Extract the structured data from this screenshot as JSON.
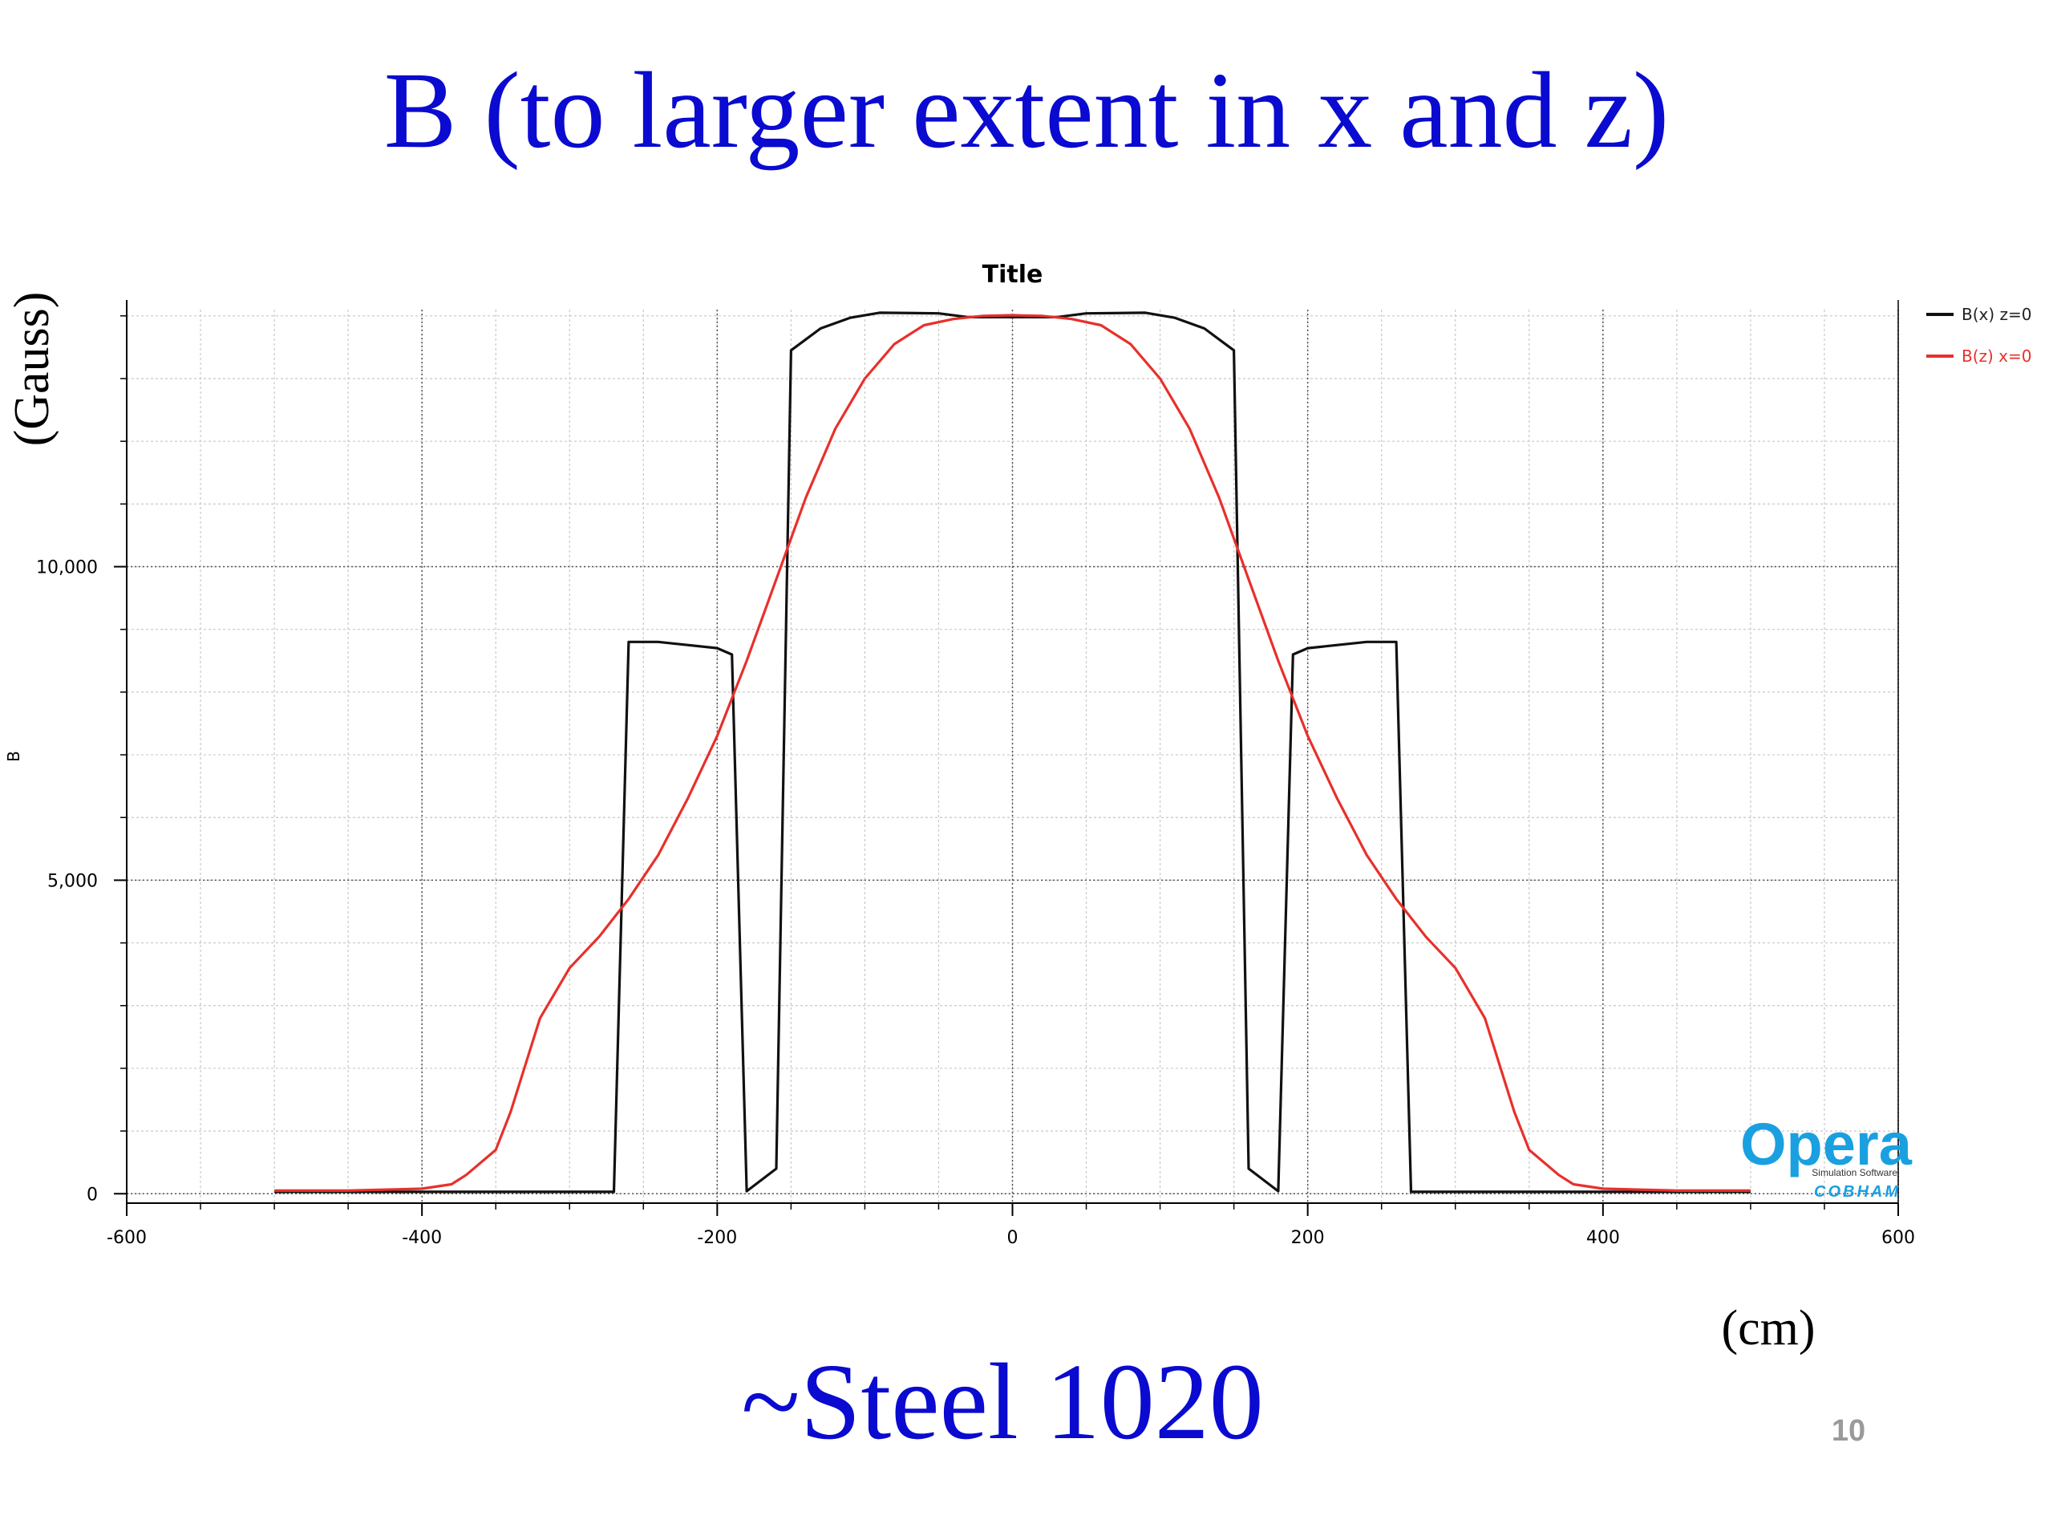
{
  "slide": {
    "title": "B (to larger extent in x and z)",
    "subtitle": "~Steel 1020",
    "y_unit": "(Gauss)",
    "x_unit": "(cm)",
    "page_number": "10"
  },
  "logo": {
    "name": "Opera",
    "tagline": "Simulation Software",
    "brand": "COBHAM"
  },
  "colors": {
    "title": "#0a0ad0",
    "series_bx": "#111111",
    "series_bz": "#e8302b",
    "logo": "#1aa0e0"
  },
  "chart_data": {
    "type": "line",
    "title": "Title",
    "xlabel": "",
    "ylabel": "B",
    "xlim": [
      -600,
      600
    ],
    "ylim": [
      -150,
      14100
    ],
    "x_ticks": [
      -600,
      -400,
      -200,
      0,
      200,
      400,
      600
    ],
    "x_tick_labels": [
      "-600",
      "-400",
      "-200",
      "0",
      "200",
      "400",
      "600"
    ],
    "y_ticks": [
      0,
      5000,
      10000
    ],
    "y_tick_labels": [
      "0",
      "5,000",
      "10,000"
    ],
    "grid": true,
    "legend": "top-right",
    "series": [
      {
        "name": "B(x) z=0",
        "color": "#111111",
        "points": [
          [
            -500,
            30
          ],
          [
            -270,
            30
          ],
          [
            -260,
            8800
          ],
          [
            -240,
            8800
          ],
          [
            -220,
            8750
          ],
          [
            -200,
            8700
          ],
          [
            -190,
            8600
          ],
          [
            -180,
            40
          ],
          [
            -160,
            400
          ],
          [
            -150,
            13450
          ],
          [
            -130,
            13800
          ],
          [
            -110,
            13970
          ],
          [
            -90,
            14050
          ],
          [
            -50,
            14040
          ],
          [
            -30,
            13980
          ],
          [
            0,
            13980
          ],
          [
            30,
            13980
          ],
          [
            50,
            14040
          ],
          [
            90,
            14050
          ],
          [
            110,
            13970
          ],
          [
            130,
            13800
          ],
          [
            150,
            13450
          ],
          [
            160,
            400
          ],
          [
            180,
            40
          ],
          [
            190,
            8600
          ],
          [
            200,
            8700
          ],
          [
            220,
            8750
          ],
          [
            240,
            8800
          ],
          [
            260,
            8800
          ],
          [
            270,
            30
          ],
          [
            500,
            30
          ]
        ]
      },
      {
        "name": "B(z) x=0",
        "color": "#e8302b",
        "points": [
          [
            -500,
            50
          ],
          [
            -450,
            50
          ],
          [
            -400,
            80
          ],
          [
            -380,
            150
          ],
          [
            -370,
            300
          ],
          [
            -350,
            700
          ],
          [
            -340,
            1300
          ],
          [
            -320,
            2800
          ],
          [
            -300,
            3600
          ],
          [
            -280,
            4100
          ],
          [
            -260,
            4700
          ],
          [
            -240,
            5400
          ],
          [
            -220,
            6300
          ],
          [
            -200,
            7300
          ],
          [
            -180,
            8500
          ],
          [
            -160,
            9800
          ],
          [
            -140,
            11100
          ],
          [
            -120,
            12200
          ],
          [
            -100,
            13000
          ],
          [
            -80,
            13550
          ],
          [
            -60,
            13850
          ],
          [
            -40,
            13950
          ],
          [
            -20,
            14000
          ],
          [
            0,
            14010
          ],
          [
            20,
            14000
          ],
          [
            40,
            13950
          ],
          [
            60,
            13850
          ],
          [
            80,
            13550
          ],
          [
            100,
            13000
          ],
          [
            120,
            12200
          ],
          [
            140,
            11100
          ],
          [
            160,
            9800
          ],
          [
            180,
            8500
          ],
          [
            200,
            7300
          ],
          [
            220,
            6300
          ],
          [
            240,
            5400
          ],
          [
            260,
            4700
          ],
          [
            280,
            4100
          ],
          [
            300,
            3600
          ],
          [
            320,
            2800
          ],
          [
            340,
            1300
          ],
          [
            350,
            700
          ],
          [
            370,
            300
          ],
          [
            380,
            150
          ],
          [
            400,
            80
          ],
          [
            450,
            50
          ],
          [
            500,
            50
          ]
        ]
      }
    ]
  }
}
